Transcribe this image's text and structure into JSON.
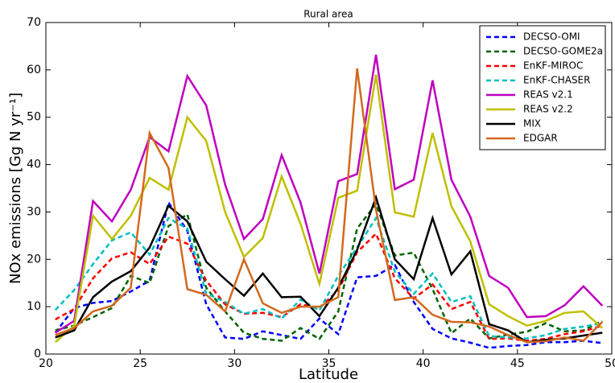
{
  "chart_data": {
    "type": "line",
    "title": "Rural area",
    "x_label": "Latitude",
    "y_label": "NOx emissions [Gg N yr⁻¹]",
    "x": [
      20.5,
      21.5,
      22.5,
      23.5,
      24.5,
      25.5,
      26.5,
      27.5,
      28.5,
      29.5,
      30.5,
      31.5,
      32.5,
      33.5,
      34.5,
      35.5,
      36.5,
      37.5,
      38.5,
      39.5,
      40.5,
      41.5,
      42.5,
      43.5,
      44.5,
      45.5,
      46.5,
      47.5,
      48.5,
      49.5
    ],
    "xlim": [
      20,
      50
    ],
    "xticks": [
      20,
      25,
      30,
      35,
      40,
      45,
      50
    ],
    "ylim": [
      0,
      70
    ],
    "yticks": [
      0,
      10,
      20,
      30,
      40,
      50,
      60,
      70
    ],
    "legend": "upper right",
    "series": [
      {
        "name": "DECSO-OMI",
        "color": "#0000ff",
        "style": "dashed",
        "values": [
          4.5,
          9.7,
          10.8,
          11.2,
          13.2,
          15.5,
          32,
          26,
          10.5,
          3.5,
          3.2,
          4.8,
          4,
          3.2,
          7.5,
          4.2,
          16.2,
          16.5,
          18.8,
          11,
          5.3,
          3.3,
          2.4,
          1.3,
          1.7,
          1.9,
          2.5,
          2.5,
          2.8,
          2.3
        ]
      },
      {
        "name": "DECSO-GOME2a",
        "color": "#006400",
        "style": "dashed",
        "values": [
          5,
          6,
          7.8,
          9.7,
          16.5,
          15,
          27,
          29.5,
          14,
          9,
          4.5,
          3.2,
          2.8,
          5.5,
          3.2,
          9,
          26.5,
          31.7,
          20.8,
          21.4,
          13.7,
          4.4,
          7.5,
          3.3,
          4.1,
          4.7,
          6.5,
          4.8,
          5,
          7
        ]
      },
      {
        "name": "EnKF-MIROC",
        "color": "#ff0000",
        "style": "dashed",
        "values": [
          7.3,
          9.5,
          16,
          20.2,
          21.5,
          19,
          24.8,
          23.3,
          15.5,
          10.5,
          8.5,
          8.7,
          7.8,
          10.5,
          9.7,
          13.5,
          21.5,
          25.4,
          16,
          11.7,
          14.7,
          9.5,
          11,
          3.2,
          3.3,
          2.8,
          3.2,
          4.2,
          4.8,
          6
        ]
      },
      {
        "name": "EnKF-CHASER",
        "color": "#00bfbf",
        "style": "dashed",
        "values": [
          9.3,
          13.5,
          19,
          24,
          25.7,
          21,
          28.7,
          26.5,
          12.8,
          11,
          8.5,
          9.5,
          7.5,
          11.5,
          9.2,
          16.5,
          22.5,
          28.7,
          17.4,
          12.7,
          17,
          11,
          12.2,
          3.8,
          3.5,
          3.3,
          4,
          5.3,
          5.8,
          6.5
        ]
      },
      {
        "name": "REAS v2.1",
        "color": "#bf00bf",
        "style": "solid",
        "values": [
          4.5,
          7,
          32.3,
          28,
          34.7,
          45.8,
          42.8,
          58.7,
          52.5,
          35.8,
          24.3,
          28.5,
          42,
          32,
          17,
          36.5,
          38,
          63.2,
          34.8,
          36.8,
          57.8,
          36.8,
          29,
          16.5,
          14,
          7.8,
          8,
          10.3,
          14.3,
          10.2
        ]
      },
      {
        "name": "REAS v2.2",
        "color": "#bfbf00",
        "style": "solid",
        "values": [
          2.5,
          6,
          29.2,
          24.3,
          29.2,
          37.2,
          34.7,
          50,
          45,
          30,
          20.5,
          24.5,
          37.5,
          27.5,
          14.8,
          33,
          34.5,
          59,
          29.9,
          29,
          46.7,
          31.2,
          23.8,
          10.5,
          8,
          6,
          7,
          8.7,
          9,
          5.5
        ]
      },
      {
        "name": "MIX",
        "color": "#000000",
        "style": "solid",
        "values": [
          3.5,
          5,
          12,
          15.3,
          17.5,
          22.5,
          31.3,
          28,
          19.5,
          15.8,
          12.3,
          17,
          12,
          12.1,
          8,
          14,
          22,
          33.1,
          20,
          15.8,
          28.7,
          16.8,
          21.7,
          6.3,
          5,
          2.5,
          3,
          3.3,
          3.9,
          4.5
        ]
      },
      {
        "name": "EDGAR",
        "color": "#d2691e",
        "style": "solid",
        "values": [
          4,
          5.5,
          9,
          10.2,
          14,
          46.7,
          39.3,
          13.7,
          12.5,
          9,
          20,
          10.7,
          8.7,
          10,
          10,
          12,
          60.3,
          30.5,
          11.4,
          12,
          8.3,
          6.8,
          6.7,
          5.8,
          4,
          2.5,
          2.7,
          3.5,
          2.8,
          6.8
        ]
      }
    ]
  }
}
